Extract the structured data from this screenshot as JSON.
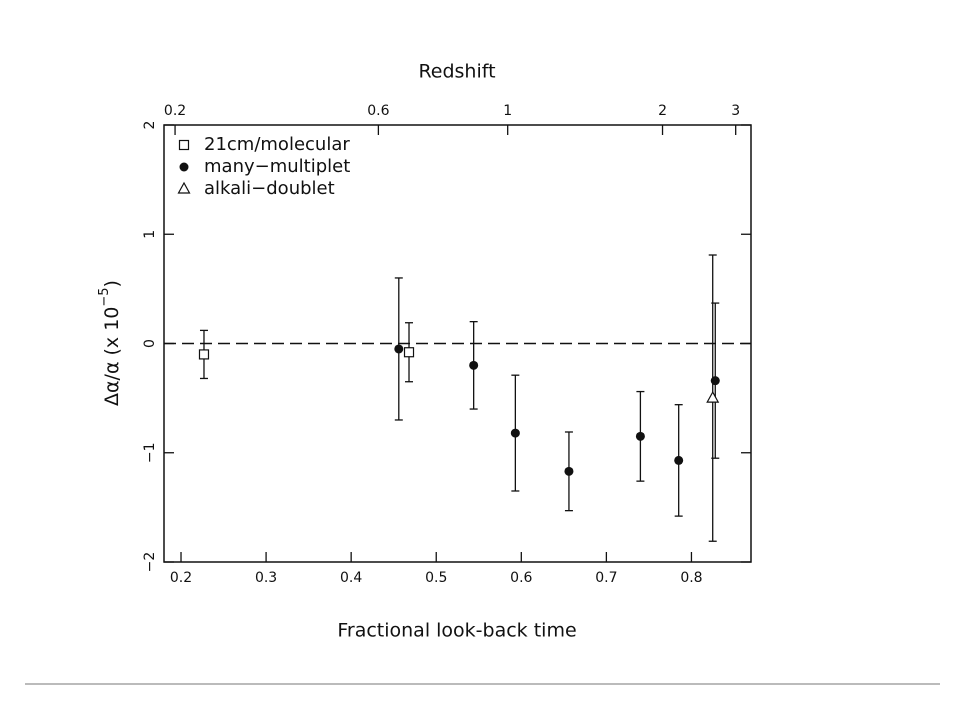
{
  "chart_data": {
    "type": "scatter",
    "x2label": "Redshift",
    "xlabel": "Fractional look-back time",
    "ylabel": {
      "text": "Δα/α (x 10",
      "superscript": "−5",
      "suffix": ")"
    },
    "xlim": [
      0.18,
      0.87
    ],
    "ylim": [
      -2,
      2
    ],
    "xticks": [
      0.2,
      0.3,
      0.4,
      0.5,
      0.6,
      0.7,
      0.8
    ],
    "yticks": [
      {
        "value": -2,
        "label": "−2"
      },
      {
        "value": -1,
        "label": "−1"
      },
      0,
      1,
      2
    ],
    "x2ticks": [
      {
        "value": 0.193,
        "label": "0.2"
      },
      {
        "value": 0.432,
        "label": "0.6"
      },
      {
        "value": 0.584,
        "label": "1"
      },
      {
        "value": 0.766,
        "label": "2"
      },
      {
        "value": 0.852,
        "label": "3"
      }
    ],
    "hline": 0,
    "legend": "upper left",
    "series": [
      {
        "name": "21cm/molecular",
        "marker": "square",
        "color": "#111",
        "x": [
          0.227,
          0.468
        ],
        "values": [
          -0.1,
          -0.08
        ],
        "errors": [
          0.22,
          0.27
        ]
      },
      {
        "name": "many−multiplet",
        "marker": "circle",
        "color": "#111",
        "x": [
          0.456,
          0.544,
          0.593,
          0.656,
          0.74,
          0.785,
          0.828
        ],
        "values": [
          -0.05,
          -0.2,
          -0.82,
          -1.17,
          -0.85,
          -1.07,
          -0.34
        ],
        "errors": [
          0.65,
          0.4,
          0.53,
          0.36,
          0.41,
          0.51,
          0.71
        ]
      },
      {
        "name": "alkali−doublet",
        "marker": "triangle",
        "color": "#111",
        "x": [
          0.825
        ],
        "values": [
          -0.5
        ],
        "errors": [
          1.31
        ]
      }
    ]
  }
}
